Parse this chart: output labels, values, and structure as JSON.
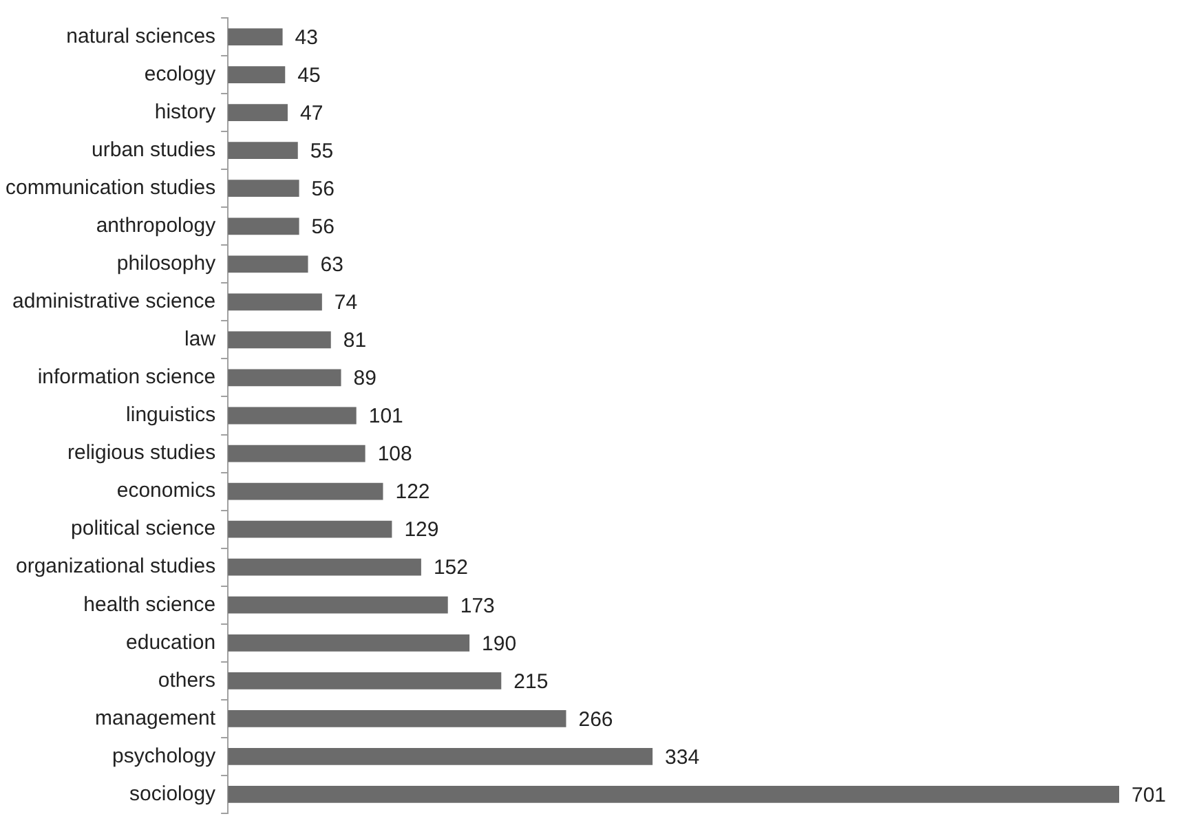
{
  "chart_data": {
    "type": "bar",
    "orientation": "horizontal",
    "data_labels": true,
    "legend": false,
    "categories": [
      "natural sciences",
      "ecology",
      "history",
      "urban studies",
      "communication studies",
      "anthropology",
      "philosophy",
      "administrative science",
      "law",
      "information science",
      "linguistics",
      "religious studies",
      "economics",
      "political science",
      "organizational studies",
      "health science",
      "education",
      "others",
      "management",
      "psychology",
      "sociology"
    ],
    "values": [
      43,
      45,
      47,
      55,
      56,
      56,
      63,
      74,
      81,
      89,
      101,
      108,
      122,
      129,
      152,
      173,
      190,
      215,
      266,
      334,
      701
    ],
    "color": "#6b6b6b"
  }
}
